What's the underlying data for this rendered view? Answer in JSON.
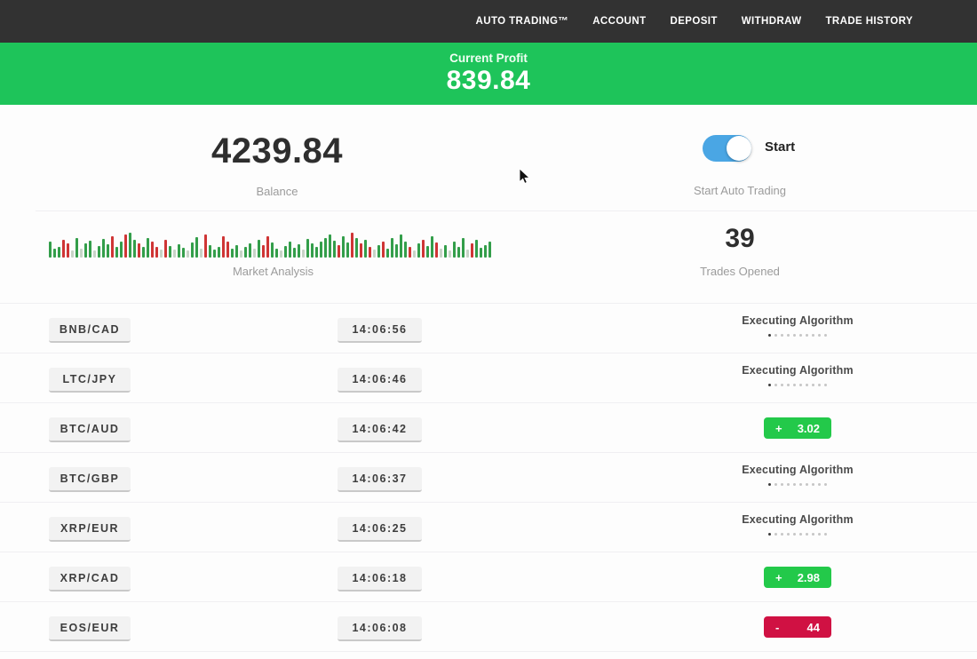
{
  "nav": {
    "items": [
      {
        "label": "AUTO TRADING™"
      },
      {
        "label": "ACCOUNT"
      },
      {
        "label": "DEPOSIT"
      },
      {
        "label": "WITHDRAW"
      },
      {
        "label": "TRADE HISTORY"
      }
    ]
  },
  "profit_banner": {
    "label": "Current Profit",
    "value": "839.84"
  },
  "stats": {
    "balance": {
      "value": "4239.84",
      "label": "Balance"
    },
    "auto_trading": {
      "toggle_label": "Start",
      "label": "Start Auto Trading",
      "state": "on"
    },
    "market_analysis": {
      "label": "Market Analysis"
    },
    "trades_opened": {
      "value": "39",
      "label": "Trades Opened"
    }
  },
  "table": {
    "executing_label": "Executing Algorithm",
    "dots_count": 10
  },
  "trades": [
    {
      "pair": "BNB/CAD",
      "time": "14:06:56",
      "status": "executing"
    },
    {
      "pair": "LTC/JPY",
      "time": "14:06:46",
      "status": "executing"
    },
    {
      "pair": "BTC/AUD",
      "time": "14:06:42",
      "status": "profit",
      "result_sign": "+",
      "result_value": "3.02"
    },
    {
      "pair": "BTC/GBP",
      "time": "14:06:37",
      "status": "executing"
    },
    {
      "pair": "XRP/EUR",
      "time": "14:06:25",
      "status": "executing"
    },
    {
      "pair": "XRP/CAD",
      "time": "14:06:18",
      "status": "profit",
      "result_sign": "+",
      "result_value": "2.98"
    },
    {
      "pair": "EOS/EUR",
      "time": "14:06:08",
      "status": "loss",
      "result_sign": "-",
      "result_value": "44"
    }
  ],
  "colors": {
    "nav_bg": "#323232",
    "banner_green": "#1ec45a",
    "profit_green": "#23c94a",
    "loss_red": "#d01143",
    "toggle_blue": "#4aa6e4"
  },
  "bar_colors": {
    "g": "#339e4a",
    "r": "#cf3535",
    "p": "#c7d4c7"
  },
  "market_bars": [
    [
      18,
      "g"
    ],
    [
      10,
      "g"
    ],
    [
      12,
      "g"
    ],
    [
      20,
      "r"
    ],
    [
      16,
      "r"
    ],
    [
      8,
      "p"
    ],
    [
      22,
      "g"
    ],
    [
      10,
      "p"
    ],
    [
      16,
      "g"
    ],
    [
      19,
      "g"
    ],
    [
      8,
      "p"
    ],
    [
      13,
      "g"
    ],
    [
      21,
      "g"
    ],
    [
      15,
      "g"
    ],
    [
      24,
      "r"
    ],
    [
      12,
      "g"
    ],
    [
      18,
      "g"
    ],
    [
      26,
      "r"
    ],
    [
      28,
      "g"
    ],
    [
      20,
      "g"
    ],
    [
      16,
      "r"
    ],
    [
      12,
      "g"
    ],
    [
      22,
      "g"
    ],
    [
      18,
      "r"
    ],
    [
      12,
      "r"
    ],
    [
      9,
      "p"
    ],
    [
      20,
      "r"
    ],
    [
      13,
      "g"
    ],
    [
      9,
      "p"
    ],
    [
      15,
      "g"
    ],
    [
      11,
      "g"
    ],
    [
      8,
      "p"
    ],
    [
      17,
      "g"
    ],
    [
      23,
      "g"
    ],
    [
      10,
      "p"
    ],
    [
      26,
      "r"
    ],
    [
      14,
      "g"
    ],
    [
      9,
      "g"
    ],
    [
      12,
      "g"
    ],
    [
      24,
      "r"
    ],
    [
      18,
      "r"
    ],
    [
      10,
      "g"
    ],
    [
      14,
      "g"
    ],
    [
      8,
      "p"
    ],
    [
      12,
      "g"
    ],
    [
      16,
      "g"
    ],
    [
      10,
      "p"
    ],
    [
      20,
      "g"
    ],
    [
      14,
      "r"
    ],
    [
      24,
      "r"
    ],
    [
      17,
      "g"
    ],
    [
      10,
      "g"
    ],
    [
      8,
      "p"
    ],
    [
      13,
      "g"
    ],
    [
      18,
      "g"
    ],
    [
      11,
      "g"
    ],
    [
      15,
      "g"
    ],
    [
      9,
      "p"
    ],
    [
      21,
      "g"
    ],
    [
      16,
      "g"
    ],
    [
      12,
      "g"
    ],
    [
      18,
      "g"
    ],
    [
      22,
      "g"
    ],
    [
      26,
      "g"
    ],
    [
      19,
      "g"
    ],
    [
      14,
      "r"
    ],
    [
      24,
      "g"
    ],
    [
      17,
      "g"
    ],
    [
      28,
      "r"
    ],
    [
      22,
      "g"
    ],
    [
      16,
      "r"
    ],
    [
      20,
      "g"
    ],
    [
      12,
      "r"
    ],
    [
      9,
      "p"
    ],
    [
      14,
      "g"
    ],
    [
      18,
      "r"
    ],
    [
      10,
      "g"
    ],
    [
      22,
      "g"
    ],
    [
      15,
      "g"
    ],
    [
      26,
      "g"
    ],
    [
      18,
      "g"
    ],
    [
      12,
      "r"
    ],
    [
      8,
      "p"
    ],
    [
      16,
      "g"
    ],
    [
      20,
      "r"
    ],
    [
      13,
      "g"
    ],
    [
      24,
      "g"
    ],
    [
      17,
      "r"
    ],
    [
      10,
      "p"
    ],
    [
      14,
      "g"
    ],
    [
      8,
      "p"
    ],
    [
      18,
      "g"
    ],
    [
      12,
      "g"
    ],
    [
      22,
      "g"
    ],
    [
      9,
      "p"
    ],
    [
      16,
      "r"
    ],
    [
      20,
      "g"
    ],
    [
      11,
      "g"
    ],
    [
      14,
      "g"
    ],
    [
      18,
      "g"
    ]
  ]
}
